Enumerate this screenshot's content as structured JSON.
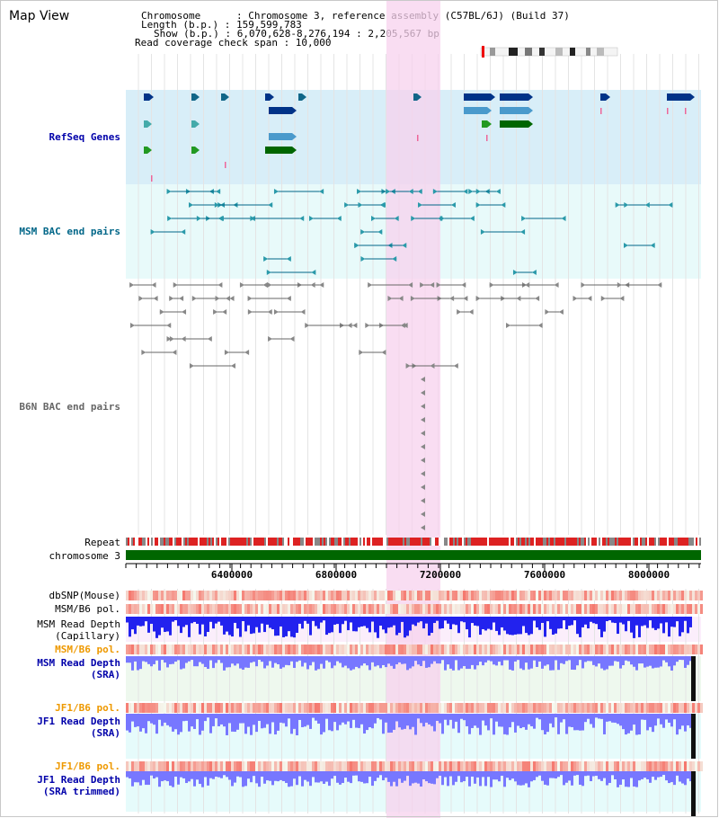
{
  "page": {
    "title": "Map View"
  },
  "info": {
    "chromosome": "Chromosome      : Chromosome 3, reference assembly (C57BL/6J) (Build 37)",
    "length": "Length (b.p.) : 159,599,783",
    "show": "Show (b.p.) : 6,070,628-8,276,194 : 2,205,567 bp",
    "span": "Read coverage check span : 10,000"
  },
  "tracks": {
    "refseq": "RefSeq Genes",
    "msm_bac": "MSM BAC end pairs",
    "b6n_bac": "B6N BAC end pairs",
    "repeat": "Repeat",
    "chromosome": "chromosome 3",
    "dbsnp": "dbSNP(Mouse)",
    "msm_b6_pol": "MSM/B6 pol.",
    "msm_read_cap": "MSM Read Depth\n(Capillary)",
    "msm_b6_pol2": "MSM/B6 pol.",
    "msm_read_sra": "MSM Read Depth\n(SRA)",
    "jf1_b6_pol": "JF1/B6 pol.",
    "jf1_read_sra": "JF1 Read Depth\n(SRA)",
    "jf1_b6_pol2": "JF1/B6 pol.",
    "jf1_read_trim": "JF1 Read Depth\n(SRA trimmed)"
  },
  "axis": {
    "ticks": [
      "6400000",
      "6800000",
      "7200000",
      "7600000",
      "8000000"
    ]
  },
  "colors": {
    "refseq_bg": "#d8eef8",
    "bac_bg": "#e8fafa",
    "highlight": "#f7d2ee",
    "chromosome": "#006600",
    "depth_blue": "#2222ee",
    "depth_light": "#7777ff"
  }
}
